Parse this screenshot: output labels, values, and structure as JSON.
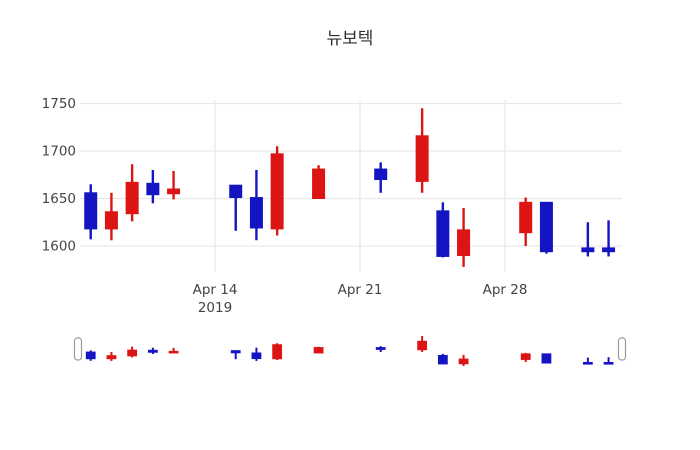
{
  "title": "뉴보텍",
  "colors": {
    "increasing": "#dd1414",
    "decreasing": "#1414c3",
    "grid": "#e9e9e9",
    "tick_text": "#444444",
    "title_text": "#2f2f2f",
    "background": "#ffffff",
    "slider_handle_stroke": "#9a9a9a",
    "slider_handle_fill": "#ffffff"
  },
  "chart_data": {
    "type": "candlestick",
    "title": "뉴보텍",
    "x": [
      "2019-04-08",
      "2019-04-09",
      "2019-04-10",
      "2019-04-11",
      "2019-04-12",
      "2019-04-15",
      "2019-04-16",
      "2019-04-17",
      "2019-04-19",
      "2019-04-22",
      "2019-04-24",
      "2019-04-25",
      "2019-04-26",
      "2019-04-29",
      "2019-04-30",
      "2019-05-02",
      "2019-05-03"
    ],
    "open": [
      1656,
      1618,
      1634,
      1666,
      1655,
      1664,
      1651,
      1618,
      1650,
      1681,
      1668,
      1637,
      1590,
      1614,
      1646,
      1598,
      1598
    ],
    "high": [
      1665,
      1656,
      1686,
      1680,
      1679,
      1664,
      1680,
      1705,
      1685,
      1688,
      1745,
      1646,
      1640,
      1651,
      1646,
      1625,
      1627
    ],
    "low": [
      1607,
      1606,
      1626,
      1645,
      1649,
      1616,
      1606,
      1611,
      1650,
      1656,
      1656,
      1588,
      1578,
      1600,
      1592,
      1589,
      1589
    ],
    "close": [
      1618,
      1636,
      1667,
      1654,
      1660,
      1651,
      1619,
      1697,
      1681,
      1670,
      1716,
      1589,
      1617,
      1646,
      1594,
      1594,
      1594
    ],
    "increasing_color": "#dd1414",
    "decreasing_color": "#1414c3",
    "yaxis": {
      "tick_values": [
        1750,
        1700,
        1650,
        1600
      ],
      "tick_labels": [
        "1750",
        "1700",
        "1650",
        "1600"
      ]
    },
    "xaxis": {
      "ticks": [
        {
          "label": "Apr 14",
          "sublabel": "2019",
          "date": "2019-04-14"
        },
        {
          "label": "Apr 21",
          "date": "2019-04-21"
        },
        {
          "label": "Apr 28",
          "date": "2019-04-28"
        }
      ]
    },
    "grid": true,
    "legend": false,
    "rangeslider": {
      "visible": true
    }
  }
}
